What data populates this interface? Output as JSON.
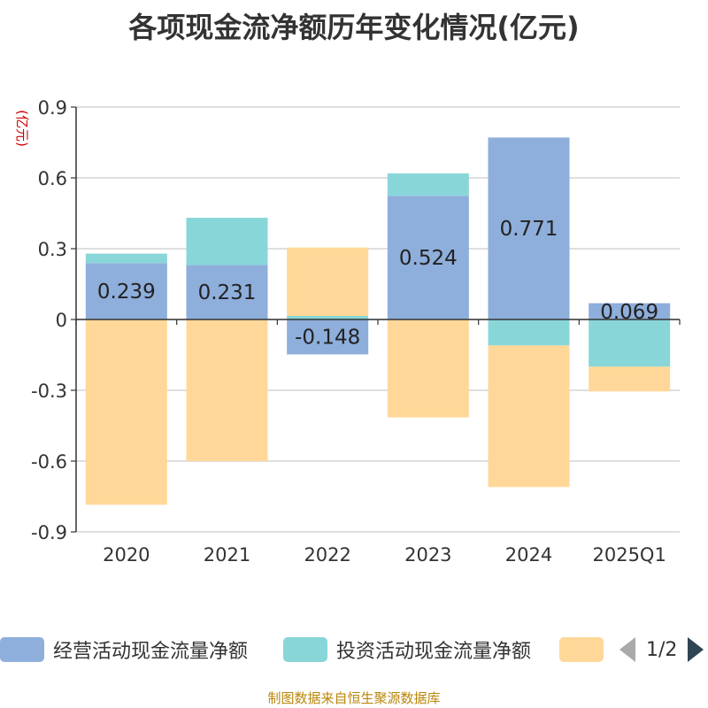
{
  "chart_data": {
    "type": "bar",
    "stacked": true,
    "title": "各项现金流净额历年变化情况(亿元)",
    "ylabel": "(亿元)",
    "ylim": [
      -0.9,
      0.9
    ],
    "yticks": [
      0.9,
      0.6,
      0.3,
      0,
      -0.3,
      -0.6,
      -0.9
    ],
    "ytick_labels": [
      "0.9",
      "0.6",
      "0.3",
      "0",
      "-0.3",
      "-0.6",
      "-0.9"
    ],
    "categories": [
      "2020",
      "2021",
      "2022",
      "2023",
      "2024",
      "2025Q1"
    ],
    "grid": true,
    "legend_position": "bottom",
    "series": [
      {
        "name": "经营活动现金流量净额",
        "color": "#8eaedb",
        "values": [
          0.239,
          0.231,
          -0.148,
          0.524,
          0.771,
          0.069
        ],
        "data_labels": [
          "0.239",
          "0.231",
          "-0.148",
          "0.524",
          "0.771",
          "0.069"
        ]
      },
      {
        "name": "投资活动现金流量净额",
        "color": "#88d6d8",
        "values": [
          0.04,
          0.2,
          0.015,
          0.095,
          -0.11,
          -0.2
        ]
      },
      {
        "name": "",
        "color": "#ffd899",
        "values": [
          -0.785,
          -0.6,
          0.29,
          -0.415,
          -0.6,
          -0.105
        ]
      }
    ]
  },
  "legend": {
    "pager": "1/2"
  },
  "source_note": "制图数据来自恒生聚源数据库"
}
